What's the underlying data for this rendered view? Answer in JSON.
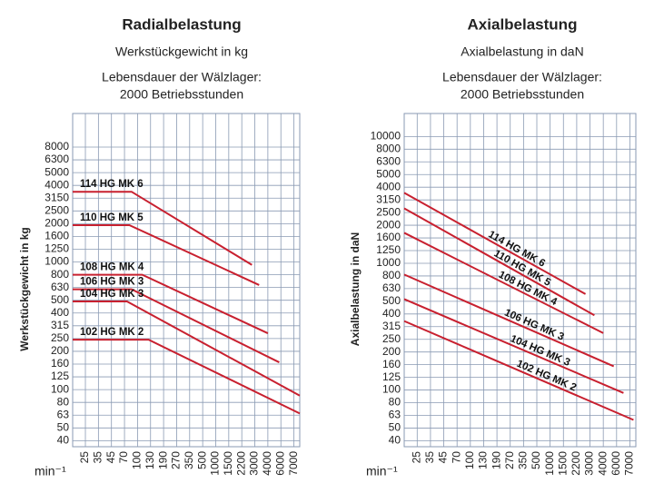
{
  "chart_data": [
    {
      "type": "line",
      "title": "Radialbelastung",
      "subtitle": "Werkstückgewicht in kg",
      "note": [
        "Lebensdauer der Wälzlager:",
        "2000 Betriebsstunden"
      ],
      "y_label": "Werkstückgewicht in kg",
      "x_label": "min⁻¹",
      "log_scale": true,
      "grid": true,
      "xlim": [
        18,
        7500
      ],
      "ylim": [
        36,
        15000
      ],
      "xticks": [
        25,
        35,
        45,
        70,
        100,
        130,
        190,
        270,
        350,
        500,
        1000,
        1500,
        2200,
        3000,
        4000,
        6000,
        7000
      ],
      "yticks": [
        40,
        50,
        63,
        80,
        100,
        125,
        160,
        200,
        250,
        315,
        400,
        500,
        630,
        800,
        1000,
        1250,
        1600,
        2000,
        2500,
        3150,
        4000,
        5000,
        6300,
        8000
      ],
      "series": [
        {
          "name": "114 HG MK 6",
          "color": "#c8202f",
          "x": [
            18,
            85,
            2800
          ],
          "values": [
            3550,
            3550,
            950
          ]
        },
        {
          "name": "110 HG MK 5",
          "color": "#c8202f",
          "x": [
            18,
            80,
            3300
          ],
          "values": [
            1950,
            1950,
            660
          ]
        },
        {
          "name": "108 HG MK 4",
          "color": "#c8202f",
          "x": [
            18,
            110,
            4000
          ],
          "values": [
            800,
            800,
            275
          ]
        },
        {
          "name": "106 HG MK 3",
          "color": "#c8202f",
          "x": [
            18,
            85,
            5700
          ],
          "values": [
            610,
            610,
            165
          ]
        },
        {
          "name": "104 HG MK 3",
          "color": "#c8202f",
          "x": [
            18,
            75,
            7500
          ],
          "values": [
            490,
            490,
            90
          ]
        },
        {
          "name": "102 HG MK 2",
          "color": "#c8202f",
          "x": [
            18,
            125,
            7500
          ],
          "values": [
            245,
            245,
            65
          ]
        }
      ]
    },
    {
      "type": "line",
      "title": "Axialbelastung",
      "subtitle": "Axialbelastung in daN",
      "note": [
        "Lebensdauer der Wälzlager:",
        "2000 Betriebsstunden"
      ],
      "y_label": "Axialbelastung in daN",
      "x_label": "min⁻¹",
      "log_scale": true,
      "grid": true,
      "xlim": [
        18,
        7500
      ],
      "ylim": [
        36,
        15000
      ],
      "xticks": [
        25,
        35,
        45,
        70,
        100,
        130,
        190,
        270,
        350,
        500,
        1000,
        1500,
        2200,
        3000,
        4000,
        6000,
        7000
      ],
      "yticks": [
        40,
        50,
        63,
        80,
        100,
        125,
        160,
        200,
        250,
        315,
        400,
        500,
        630,
        800,
        1000,
        1250,
        1600,
        2000,
        2500,
        3150,
        4000,
        5000,
        6300,
        8000,
        10000
      ],
      "series": [
        {
          "name": "114 HG MK 6",
          "color": "#c8202f",
          "x": [
            18,
            2700
          ],
          "values": [
            3600,
            570
          ]
        },
        {
          "name": "110 HG MK 5",
          "color": "#c8202f",
          "x": [
            18,
            3300
          ],
          "values": [
            2700,
            390
          ]
        },
        {
          "name": "108 HG MK 4",
          "color": "#c8202f",
          "x": [
            18,
            4000
          ],
          "values": [
            1750,
            280
          ]
        },
        {
          "name": "106 HG MK 3",
          "color": "#c8202f",
          "x": [
            18,
            5500
          ],
          "values": [
            820,
            155
          ]
        },
        {
          "name": "104 HG MK 3",
          "color": "#c8202f",
          "x": [
            18,
            6500
          ],
          "values": [
            520,
            95
          ]
        },
        {
          "name": "102 HG MK 2",
          "color": "#c8202f",
          "x": [
            18,
            7300
          ],
          "values": [
            350,
            58
          ]
        }
      ]
    }
  ]
}
